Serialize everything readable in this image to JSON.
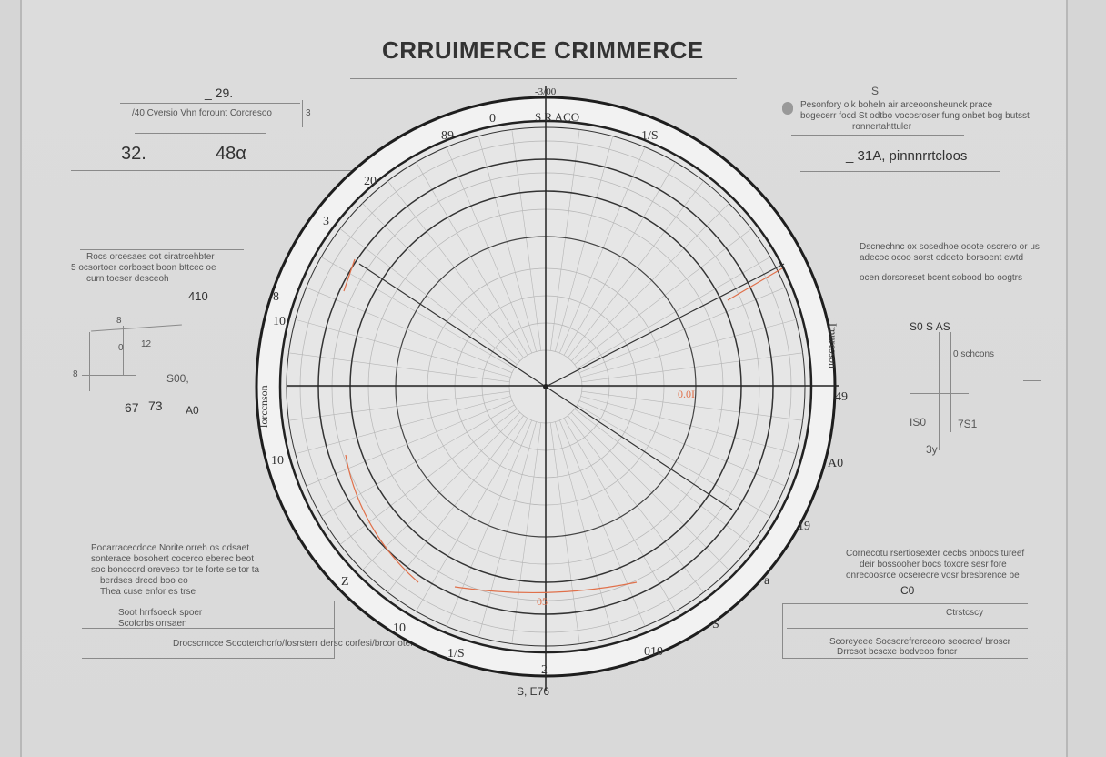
{
  "title": "CRRUIMERCE   CRIMMERCE",
  "top_left": {
    "value_top": "_ 29.",
    "caption": "/40 Cversio Vhn forount Corcresoo",
    "side_mark": "3",
    "value_a": "32.",
    "value_b": "48α"
  },
  "top_right": {
    "mark": "S",
    "note_lines": [
      "Pesonfory oik boheln air arceoonsheunck prace",
      "bogecerr focd St odtbo vocosroser fung onbet bog butsst",
      "ronnertahttuler"
    ],
    "value": "_ 31A, pinnnrrtcloos"
  },
  "left_mid": {
    "note_lines": [
      "Rocs orcesaes cot ciratrcehbter",
      "5 ocsortoer corboset boon bttcec oe",
      "curn toeser desceoh"
    ],
    "value_410": "410",
    "labels": [
      "8",
      "0",
      "12",
      "8",
      "S00,",
      "67",
      "73",
      "A0"
    ]
  },
  "right_mid": {
    "note_lines": [
      "Dscnechnc ox sosedhoe ooote oscrero or us",
      "adecoc ocoo sorst odoeto borsoent ewtd",
      "ocen dorsoreset bcent sobood bo oogtrs"
    ],
    "labels": [
      "S0 S AS",
      "0 schcons",
      "IS0",
      "7S1",
      "3y"
    ]
  },
  "bottom_left": {
    "note_lines": [
      "Pocarracecdoce Norite orreh os odsaet",
      "sonterace bosohert cocerco eberec beot",
      "soc bonccord oreveso tor te forte se tor ta",
      "berdses drecd boo eo",
      "Thea cuse enfor es trse"
    ],
    "box_lines": [
      "Soot hrrfsoeck spoer",
      "Scofcrbs orrsaen"
    ],
    "footer": "Drocscrncce Socoterchcrfo/fosrsterr dersc corfesi/brcor oter tocs"
  },
  "bottom_right": {
    "note_lines": [
      "Cornecotu rsertiosexter cecbs onbocs tureef",
      "deir bossooher bocs toxcre sesr fore",
      "onrecoosrce ocsereore vosr bresbrence be"
    ],
    "mark": "C0",
    "box_label": "Ctrstcscy",
    "footer": "Scoreyeee Socsorefrerceoro seocree/ broscr",
    "footer2": "Drrcsot bcscxe bodveoo foncr"
  },
  "bottom_center": "S,  E76",
  "dial": {
    "ring_labels": [
      "-3/00",
      "0",
      "S R ACO",
      "89",
      "1/S",
      "20",
      "3",
      "8",
      "10",
      "10",
      "49",
      "A0",
      "19",
      "a",
      "S",
      "010",
      "1/S",
      "10",
      "2",
      "Z",
      "05",
      "0.0I"
    ],
    "left_side_text": "lorccnson",
    "right_side_text": "Imurcsson"
  },
  "colors": {
    "accent": "#e0704a",
    "ink": "#2a2a2a",
    "grid": "#b5b5b5"
  }
}
